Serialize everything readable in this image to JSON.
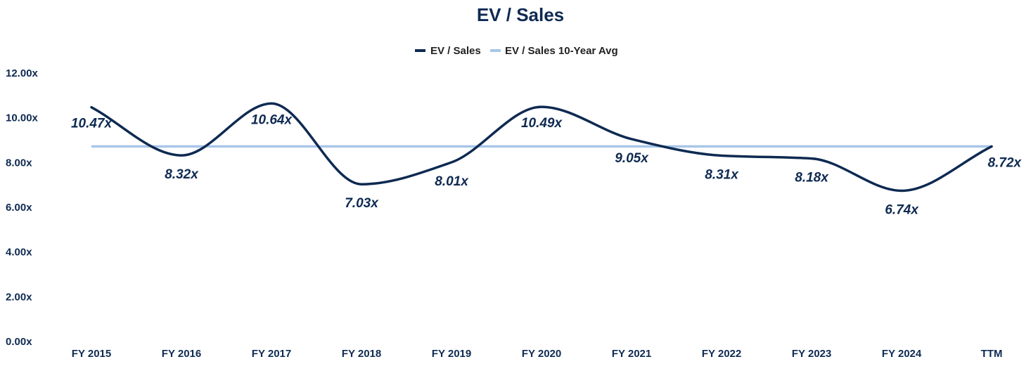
{
  "chart_data": {
    "type": "line",
    "title": "EV / Sales",
    "xlabel": "",
    "ylabel": "",
    "categories": [
      "FY 2015",
      "FY 2016",
      "FY 2017",
      "FY 2018",
      "FY 2019",
      "FY 2020",
      "FY 2021",
      "FY 2022",
      "FY 2023",
      "FY 2024",
      "TTM"
    ],
    "series": [
      {
        "name": "EV / Sales",
        "color": "#0e2a52",
        "values": [
          10.47,
          8.32,
          10.64,
          7.03,
          8.01,
          10.49,
          9.05,
          8.31,
          8.18,
          6.74,
          8.72
        ],
        "labels": [
          "10.47x",
          "8.32x",
          "10.64x",
          "7.03x",
          "8.01x",
          "10.49x",
          "9.05x",
          "8.31x",
          "8.18x",
          "6.74x",
          "8.72x"
        ]
      },
      {
        "name": "EV / Sales 10-Year Avg",
        "color": "#a9c6e8",
        "values": [
          8.72,
          8.72,
          8.72,
          8.72,
          8.72,
          8.72,
          8.72,
          8.72,
          8.72,
          8.72,
          8.72
        ]
      }
    ],
    "ylim": [
      0,
      12
    ],
    "yticks": [
      0,
      2,
      4,
      6,
      8,
      10,
      12
    ],
    "ytick_labels": [
      "0.00x",
      "2.00x",
      "4.00x",
      "6.00x",
      "8.00x",
      "10.00x",
      "12.00x"
    ],
    "grid": false,
    "legend": "top-center"
  }
}
